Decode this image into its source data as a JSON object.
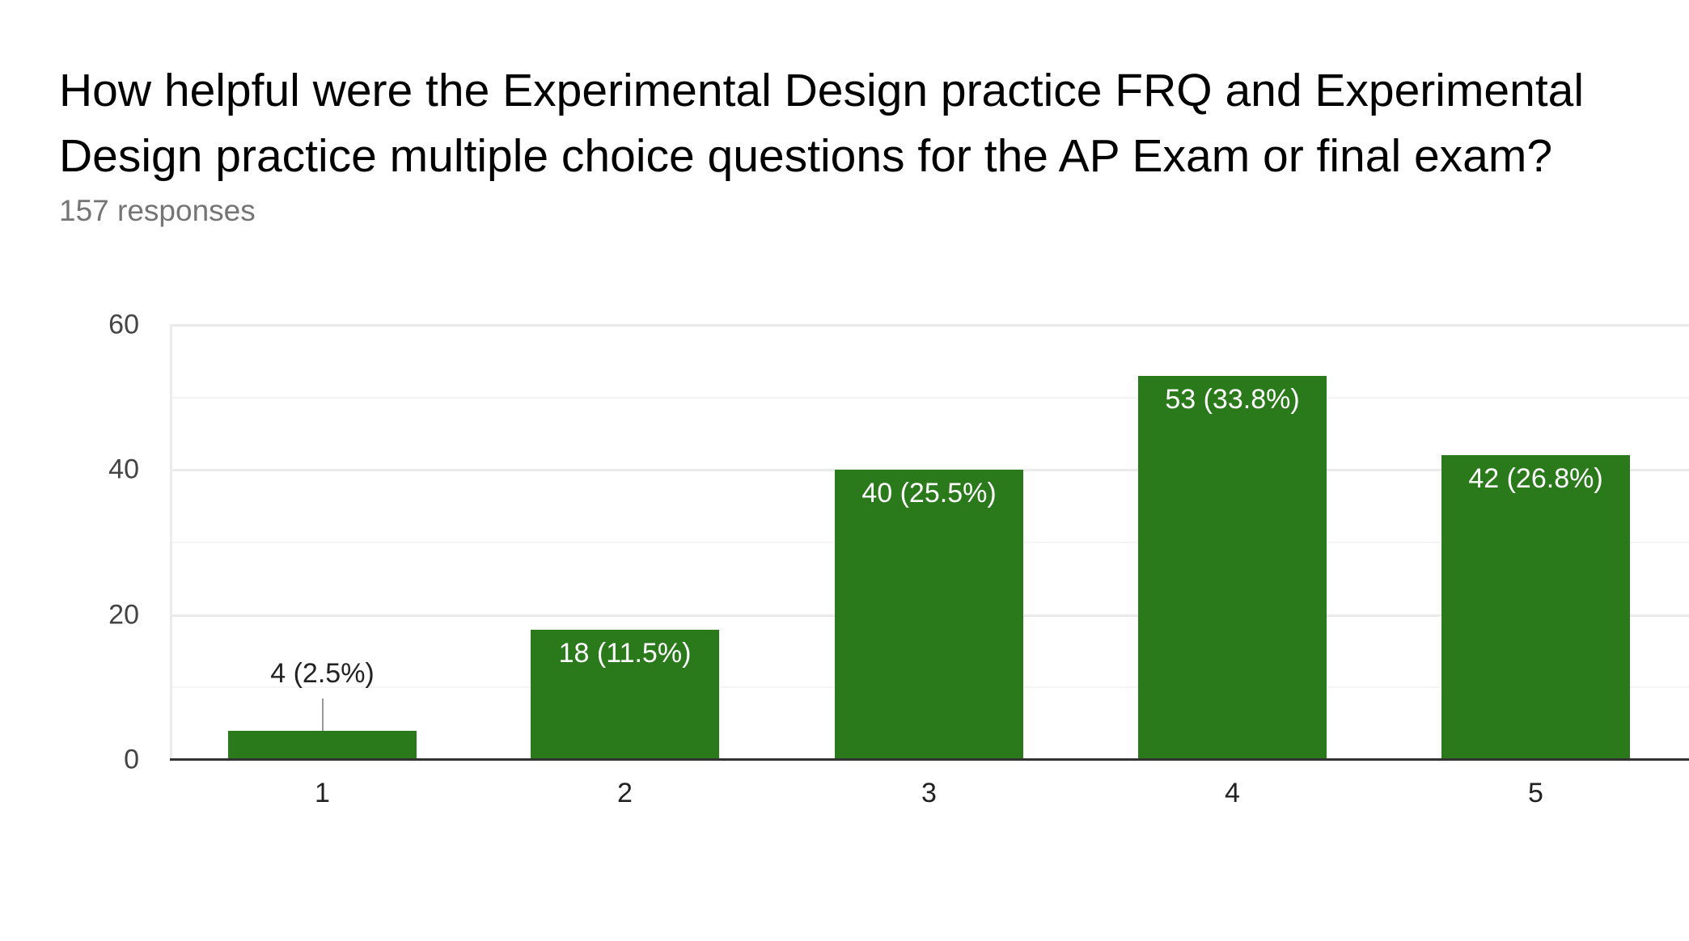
{
  "header": {
    "title": "How helpful were the Experimental Design practice FRQ and Experimental Design practice multiple choice questions for the AP Exam or final exam?",
    "responses": "157 responses"
  },
  "colors": {
    "bar": "#2a7a1c",
    "grid": "#ebebeb",
    "axis": "#333333"
  },
  "chart_data": {
    "type": "bar",
    "title": "How helpful were the Experimental Design practice FRQ and Experimental Design practice multiple choice questions for the AP Exam or final exam?",
    "subtitle": "157 responses",
    "categories": [
      "1",
      "2",
      "3",
      "4",
      "5"
    ],
    "values": [
      4,
      18,
      40,
      53,
      42
    ],
    "labels": [
      "4 (2.5%)",
      "18 (11.5%)",
      "40 (25.5%)",
      "53 (33.8%)",
      "42 (26.8%)"
    ],
    "percentages": [
      2.5,
      11.5,
      25.5,
      33.8,
      26.8
    ],
    "yticks": [
      "0",
      "20",
      "40",
      "60"
    ],
    "ylim": [
      0,
      60
    ],
    "xlabel": "",
    "ylabel": "",
    "grid": true,
    "legend": "none"
  }
}
